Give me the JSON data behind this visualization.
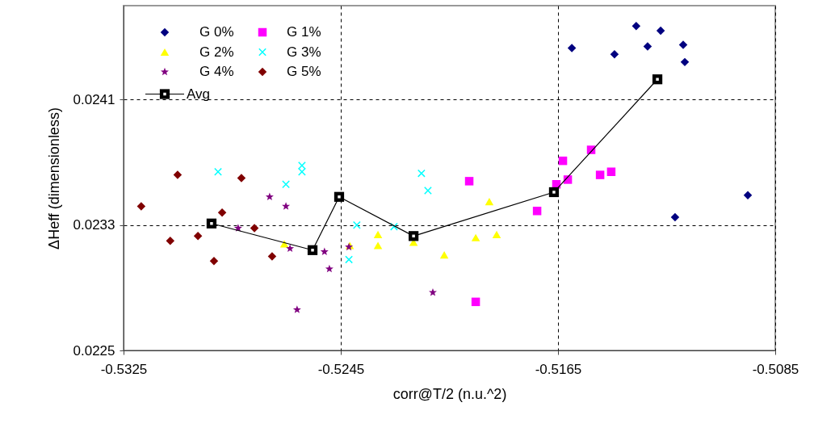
{
  "chart_data": {
    "type": "scatter",
    "xlabel": "corr@T/2 (n.u.^2)",
    "ylabel": "ΔHeff (dimensionless)",
    "xlim": [
      -0.5325,
      -0.5085
    ],
    "xticks": [
      {
        "value": -0.5325,
        "label": "-0.5325"
      },
      {
        "value": -0.5245,
        "label": "-0.5245"
      },
      {
        "value": -0.5165,
        "label": "-0.5165"
      },
      {
        "value": -0.5085,
        "label": "-0.5085"
      }
    ],
    "ylim": [
      0.0225,
      0.0247
    ],
    "yticks": [
      0.0225,
      0.0233,
      0.0241
    ],
    "grid": true,
    "legend": "top left",
    "series": [
      {
        "name": "G 0%",
        "color": "#000080",
        "marker": "diamond",
        "x": [
          -0.51599,
          -0.51442,
          -0.51362,
          -0.5132,
          -0.51272,
          -0.51189,
          -0.51183,
          -0.51219,
          -0.50951
        ],
        "values": [
          0.02443,
          0.02439,
          0.02457,
          0.02444,
          0.02454,
          0.02445,
          0.02434,
          0.02335,
          0.02349
        ]
      },
      {
        "name": "G 1%",
        "color": "#ff00ff",
        "marker": "square",
        "x": [
          -0.51977,
          -0.51632,
          -0.51528,
          -0.51495,
          -0.51454,
          -0.51614,
          -0.51656,
          -0.51727,
          -0.51953
        ],
        "values": [
          0.02358,
          0.02371,
          0.02378,
          0.02362,
          0.02364,
          0.02359,
          0.02356,
          0.02339,
          0.02281
        ]
      },
      {
        "name": "G 2%",
        "color": "#ffff00",
        "marker": "triangle",
        "x": [
          -0.52658,
          -0.52417,
          -0.52313,
          -0.52313,
          -0.52182,
          -0.52069,
          -0.51953,
          -0.51903,
          -0.51876
        ],
        "values": [
          0.02318,
          0.02317,
          0.02324,
          0.02317,
          0.02319,
          0.02311,
          0.02322,
          0.02345,
          0.02324
        ]
      },
      {
        "name": "G 3%",
        "color": "#00ffff",
        "marker": "cross",
        "x": [
          -0.52902,
          -0.52652,
          -0.52593,
          -0.52593,
          -0.5242,
          -0.52391,
          -0.52254,
          -0.52153,
          -0.52129
        ],
        "values": [
          0.02364,
          0.02356,
          0.02368,
          0.02364,
          0.02308,
          0.0233,
          0.02329,
          0.02363,
          0.02352
        ]
      },
      {
        "name": "G 4%",
        "color": "#800080",
        "marker": "star",
        "x": [
          -0.52828,
          -0.52712,
          -0.52652,
          -0.52637,
          -0.52611,
          -0.5251,
          -0.52492,
          -0.5242,
          -0.52111
        ],
        "values": [
          0.02328,
          0.02348,
          0.02342,
          0.02315,
          0.02276,
          0.02313,
          0.02302,
          0.02316,
          0.02287
        ]
      },
      {
        "name": "G 5%",
        "color": "#800000",
        "marker": "diamond",
        "x": [
          -0.53185,
          -0.53078,
          -0.53051,
          -0.52976,
          -0.52917,
          -0.52887,
          -0.52816,
          -0.52768,
          -0.52703
        ],
        "values": [
          0.02342,
          0.0232,
          0.02362,
          0.02323,
          0.02307,
          0.02338,
          0.0236,
          0.02328,
          0.0231
        ]
      },
      {
        "name": "Avg",
        "type": "line",
        "color": "#000000",
        "marker": "square",
        "x": [
          -0.52926,
          -0.52554,
          -0.52456,
          -0.52182,
          -0.51665,
          -0.51284
        ],
        "values": [
          0.02331,
          0.02314,
          0.02348,
          0.02323,
          0.02351,
          0.02423
        ]
      }
    ]
  }
}
